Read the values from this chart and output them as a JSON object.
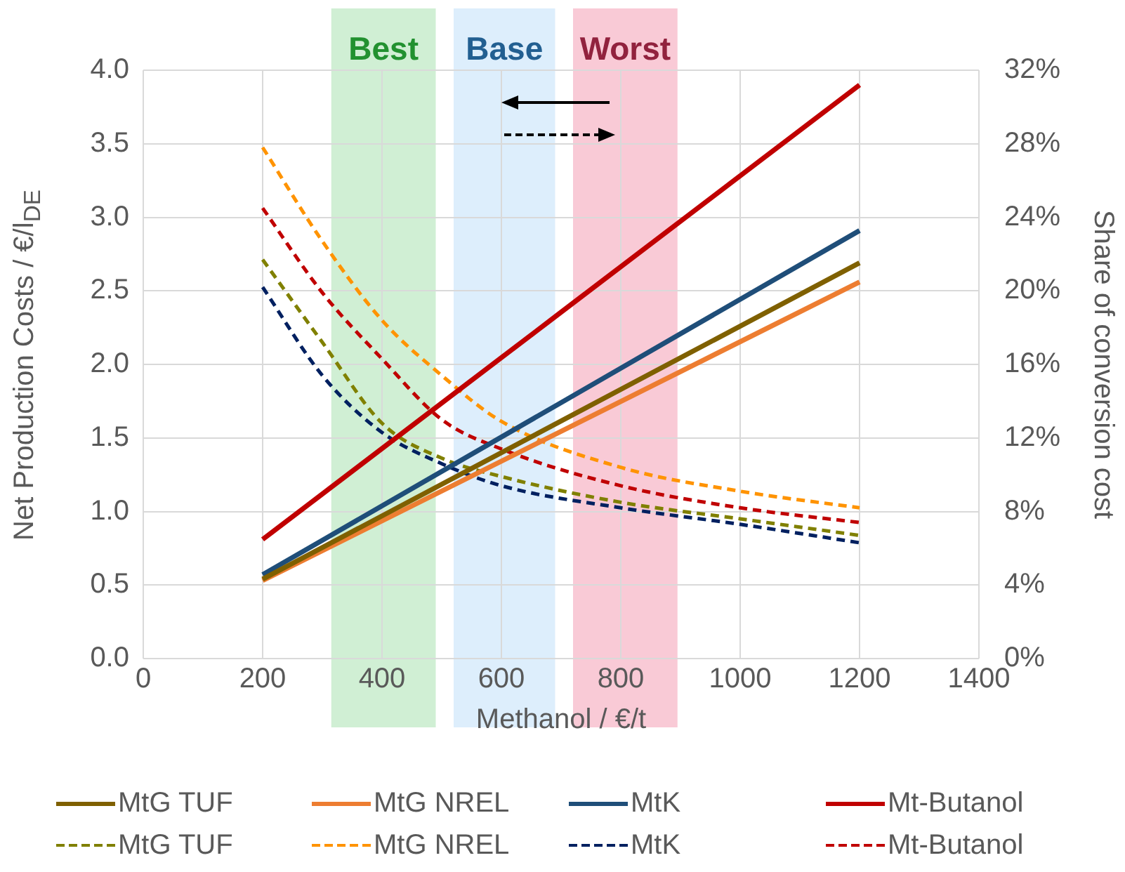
{
  "chart_data": {
    "type": "line",
    "xlabel": "Methanol / €/t",
    "ylabel": "Net Production Costs / €/l$_{DE}$",
    "y2label": "Share of conversion cost",
    "xlim": [
      0,
      1400
    ],
    "xticks": [
      0,
      200,
      400,
      600,
      800,
      1000,
      1200,
      1400
    ],
    "ylim": [
      0,
      4
    ],
    "yticks": [
      {
        "value": 0,
        "label": "0.0"
      },
      {
        "value": 0.5,
        "label": "0.5"
      },
      {
        "value": 1,
        "label": "1.0"
      },
      {
        "value": 1.5,
        "label": "1.5"
      },
      {
        "value": 2,
        "label": "2.0"
      },
      {
        "value": 2.5,
        "label": "2.5"
      },
      {
        "value": 3,
        "label": "3.0"
      },
      {
        "value": 3.5,
        "label": "3.5"
      },
      {
        "value": 4,
        "label": "4.0"
      }
    ],
    "y2lim": [
      0,
      32
    ],
    "y2ticks": [
      {
        "value": 0,
        "label": "0%"
      },
      {
        "value": 4,
        "label": "4%"
      },
      {
        "value": 8,
        "label": "8%"
      },
      {
        "value": 12,
        "label": "12%"
      },
      {
        "value": 16,
        "label": "16%"
      },
      {
        "value": 20,
        "label": "20%"
      },
      {
        "value": 24,
        "label": "24%"
      },
      {
        "value": 28,
        "label": "28%"
      },
      {
        "value": 32,
        "label": "32%"
      }
    ],
    "grid": true,
    "legend": "bottom",
    "marker": "none",
    "bands": [
      {
        "axis": "x",
        "from": 315,
        "to": 490,
        "label": "Best",
        "color": "#d0efd4"
      },
      {
        "axis": "x",
        "from": 520,
        "to": 690,
        "label": "Base",
        "color": "#ddeefc"
      },
      {
        "axis": "x",
        "from": 720,
        "to": 895,
        "label": "Worst",
        "color": "#f9cad6"
      }
    ],
    "series": [
      {
        "name": "MtG TUF",
        "color": "#7f6000",
        "line_style": "solid",
        "x": [
          200,
          1200
        ],
        "values": [
          0.54,
          2.69
        ]
      },
      {
        "name": "MtG NREL",
        "color": "#ed7d31",
        "line_style": "solid",
        "x": [
          200,
          1200
        ],
        "values": [
          0.53,
          2.56
        ]
      },
      {
        "name": "MtK",
        "color": "#1f4e79",
        "line_style": "solid",
        "x": [
          200,
          1200
        ],
        "values": [
          0.57,
          2.91
        ]
      },
      {
        "name": "Mt-Butanol",
        "color": "#c00000",
        "line_style": "solid",
        "x": [
          200,
          1200
        ],
        "values": [
          0.81,
          3.9
        ]
      },
      {
        "name": "MtG TUF",
        "color": "#808000",
        "line_style": "dashed",
        "axis": "y2",
        "x": [
          200,
          300,
          400,
          500,
          600,
          800,
          1000,
          1200
        ],
        "values": [
          21.7,
          17.2,
          12.8,
          10.9,
          9.9,
          8.5,
          7.6,
          6.7
        ]
      },
      {
        "name": "MtG NREL",
        "color": "#ff9300",
        "line_style": "dashed",
        "axis": "y2",
        "x": [
          200,
          300,
          400,
          500,
          600,
          800,
          1000,
          1200
        ],
        "values": [
          27.8,
          22.7,
          18.4,
          15.4,
          12.9,
          10.4,
          9.1,
          8.2
        ]
      },
      {
        "name": "MtK",
        "color": "#002060",
        "line_style": "dashed",
        "axis": "y2",
        "x": [
          200,
          300,
          400,
          500,
          600,
          800,
          1000,
          1200
        ],
        "values": [
          20.2,
          15.4,
          12.3,
          10.6,
          9.4,
          8.2,
          7.3,
          6.3
        ]
      },
      {
        "name": "Mt-Butanol",
        "color": "#c00000",
        "line_style": "dashed",
        "axis": "y2",
        "x": [
          200,
          300,
          400,
          500,
          600,
          800,
          1000,
          1200
        ],
        "values": [
          24.5,
          19.9,
          16.3,
          13,
          11.4,
          9.4,
          8.2,
          7.4
        ]
      }
    ]
  }
}
